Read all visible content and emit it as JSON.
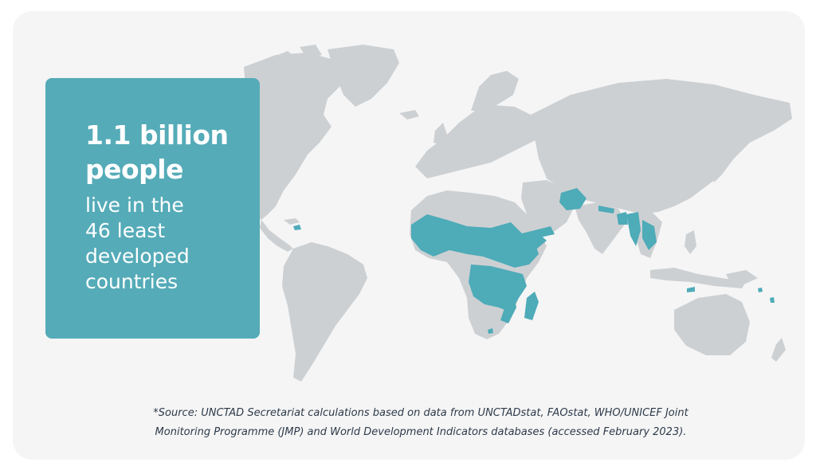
{
  "stat": {
    "headline_line1": "1.1 billion",
    "headline_line2": "people",
    "sub_line1": "live in the",
    "sub_line2": "46 least",
    "sub_line3": "developed",
    "sub_line4": "countries"
  },
  "source": {
    "line1": "*Source: UNCTAD Secretariat calculations based on data from UNCTADstat, FAOstat, WHO/UNICEF Joint",
    "line2": "Monitoring Programme (JMP) and World Development Indicators databases (accessed February 2023)."
  },
  "map": {
    "land_color": "#cdd0d3",
    "highlight_color": "#4eabb8",
    "highlighted_regions": [
      "Sub-Saharan Africa",
      "Afghanistan",
      "Yemen",
      "Nepal",
      "Bangladesh",
      "Myanmar",
      "Laos",
      "Cambodia",
      "Haiti",
      "Madagascar",
      "Pacific islands"
    ]
  },
  "colors": {
    "card_background": "#f5f5f5",
    "stat_box": "#55abb8",
    "stat_text": "#ffffff",
    "source_text": "#2d3a4a"
  }
}
